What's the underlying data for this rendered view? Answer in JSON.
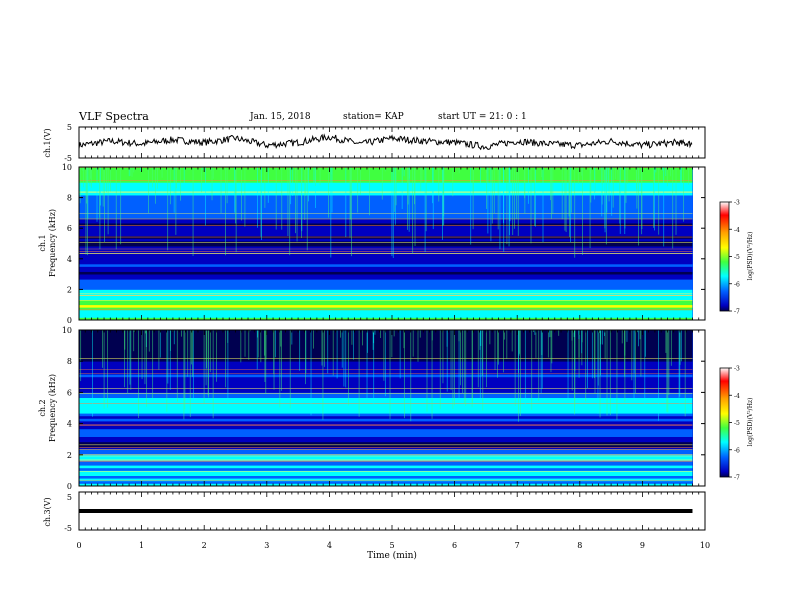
{
  "header": {
    "title": "VLF Spectra",
    "date": "Jan. 15, 2018",
    "station": "station= KAP",
    "start": "start UT =  21: 0  : 1"
  },
  "chart_data": [
    {
      "type": "line",
      "title": "",
      "ylabel": "ch.1(V)",
      "ylim": [
        -5,
        5
      ],
      "yticks": [
        "5",
        "-5"
      ],
      "x": [
        0,
        0.5,
        1,
        1.5,
        2,
        2.5,
        3,
        3.5,
        4,
        4.5,
        5,
        5.5,
        6,
        6.5,
        7,
        7.5,
        8,
        8.5,
        9,
        9.5,
        9.8
      ],
      "values": [
        -1,
        0.5,
        -0.5,
        1,
        0,
        1.5,
        -1,
        0,
        2,
        -0.5,
        1.5,
        0.5,
        0,
        -1.5,
        0.5,
        -0.5,
        -1,
        0.5,
        -1,
        0,
        -0.5
      ]
    },
    {
      "type": "heatmap",
      "title": "",
      "ylabel": "ch.1\nFrequency (kHz)",
      "ylim": [
        0,
        10
      ],
      "yticks": [
        "0",
        "2",
        "4",
        "6",
        "8",
        "10"
      ],
      "xlim": [
        0,
        9.8
      ],
      "value_range": [
        -7,
        -3
      ],
      "band_profile_log_psd": [
        [
          0.0,
          -4.8
        ],
        [
          0.5,
          -5.2
        ],
        [
          1.0,
          -4.4
        ],
        [
          1.5,
          -5.3
        ],
        [
          2.0,
          -5.6
        ],
        [
          2.5,
          -5.8
        ],
        [
          3.0,
          -6.7
        ],
        [
          3.5,
          -6.0
        ],
        [
          4.0,
          -6.3
        ],
        [
          4.5,
          -5.9
        ],
        [
          5.0,
          -6.8
        ],
        [
          5.5,
          -6.3
        ],
        [
          6.0,
          -6.7
        ],
        [
          6.5,
          -6.1
        ],
        [
          7.0,
          -5.6
        ],
        [
          7.5,
          -5.9
        ],
        [
          8.0,
          -5.7
        ],
        [
          8.5,
          -5.3
        ],
        [
          9.0,
          -5.0
        ],
        [
          9.5,
          -4.7
        ],
        [
          10.0,
          -4.8
        ]
      ],
      "colorbar": {
        "label": "log(PSD)(V²/Hz)",
        "ticks": [
          "-3",
          "-4",
          "-5",
          "-6",
          "-7"
        ],
        "colors": [
          "#ff2000",
          "#ffa000",
          "#ffff00",
          "#40ff40",
          "#00ffff",
          "#0080ff",
          "#0000ff",
          "#000060"
        ]
      }
    },
    {
      "type": "heatmap",
      "title": "",
      "ylabel": "ch.2\nFrequency (kHz)",
      "ylim": [
        0,
        10
      ],
      "yticks": [
        "0",
        "2",
        "4",
        "6",
        "8",
        "10"
      ],
      "xlim": [
        0,
        9.8
      ],
      "value_range": [
        -7,
        -3
      ],
      "band_profile_log_psd": [
        [
          0.0,
          -5.3
        ],
        [
          0.5,
          -5.6
        ],
        [
          1.0,
          -5.4
        ],
        [
          1.5,
          -5.7
        ],
        [
          2.0,
          -5.5
        ],
        [
          2.5,
          -6.6
        ],
        [
          3.0,
          -6.3
        ],
        [
          3.5,
          -6.0
        ],
        [
          4.0,
          -6.1
        ],
        [
          4.5,
          -5.8
        ],
        [
          5.0,
          -5.5
        ],
        [
          5.5,
          -5.3
        ],
        [
          6.0,
          -5.9
        ],
        [
          6.5,
          -6.4
        ],
        [
          7.0,
          -6.0
        ],
        [
          7.5,
          -6.2
        ],
        [
          8.0,
          -6.5
        ],
        [
          8.5,
          -6.8
        ],
        [
          9.0,
          -6.9
        ],
        [
          9.5,
          -6.8
        ],
        [
          10.0,
          -6.7
        ]
      ],
      "colorbar": {
        "label": "log(PSD)(V²/Hz)",
        "ticks": [
          "-3",
          "-4",
          "-5",
          "-6",
          "-7"
        ],
        "colors": [
          "#ff2000",
          "#ffa000",
          "#ffff00",
          "#40ff40",
          "#00ffff",
          "#0080ff",
          "#0000ff",
          "#000060"
        ]
      }
    },
    {
      "type": "line",
      "title": "",
      "ylabel": "ch.3(V)",
      "ylim": [
        -5,
        5
      ],
      "yticks": [
        "5",
        "0",
        "-5"
      ],
      "x": [
        0,
        9.8
      ],
      "values": [
        0,
        0
      ]
    }
  ],
  "xaxis": {
    "xlabel": "Time (min)",
    "xlim": [
      0,
      10
    ],
    "ticks": [
      "0",
      "1",
      "2",
      "3",
      "4",
      "5",
      "6",
      "7",
      "8",
      "9",
      "10"
    ]
  }
}
